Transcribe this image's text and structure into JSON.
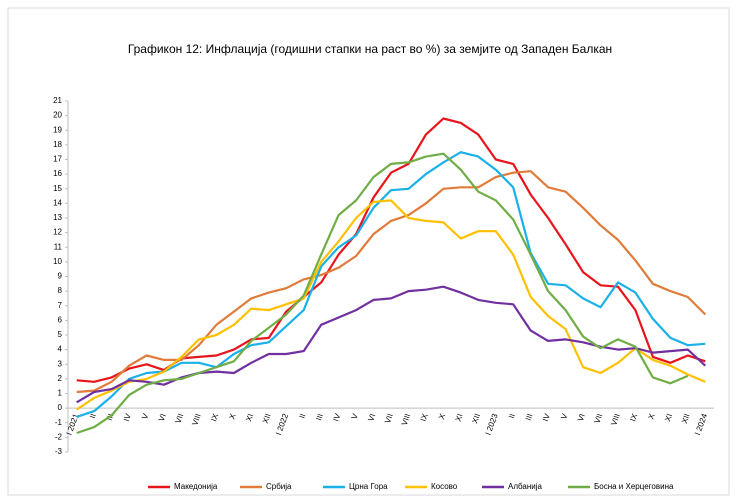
{
  "chart_data": {
    "type": "line",
    "title": "Графикон 12: Инфлација (годишни стапки на раст во %) за земјите од Западен Балкан",
    "categories": [
      "I 2021",
      "II",
      "III",
      "IV",
      "V",
      "VI",
      "VII",
      "VIII",
      "IX",
      "X",
      "XI",
      "XII",
      "I 2022",
      "II",
      "III",
      "IV",
      "V",
      "VI",
      "VII",
      "VIII",
      "IX",
      "X",
      "XI",
      "XII",
      "I 2023",
      "II",
      "III",
      "IV",
      "V",
      "VI",
      "VII",
      "VIII",
      "IX",
      "X",
      "XI",
      "XII",
      "I 2024"
    ],
    "ylim": [
      -3,
      21
    ],
    "yticks": [
      -3,
      -2,
      -1,
      0,
      1,
      2,
      3,
      4,
      5,
      6,
      7,
      8,
      9,
      10,
      11,
      12,
      13,
      14,
      15,
      16,
      17,
      18,
      19,
      20,
      21
    ],
    "grid": false,
    "legend": "bottom",
    "series": [
      {
        "name": "Македонија",
        "color": "#e8141c",
        "values": [
          1.9,
          1.8,
          2.1,
          2.7,
          3.0,
          2.6,
          3.4,
          3.5,
          3.6,
          4.0,
          4.7,
          4.8,
          6.6,
          7.6,
          8.6,
          10.5,
          11.9,
          14.4,
          16.1,
          16.7,
          18.7,
          19.8,
          19.5,
          18.7,
          17.0,
          16.7,
          14.6,
          13.0,
          11.2,
          9.3,
          8.4,
          8.3,
          6.7,
          3.5,
          3.1,
          3.6,
          3.2
        ]
      },
      {
        "name": "Србија",
        "color": "#e07b39",
        "values": [
          1.1,
          1.2,
          1.8,
          2.9,
          3.6,
          3.3,
          3.3,
          4.3,
          5.7,
          6.6,
          7.5,
          7.9,
          8.2,
          8.8,
          9.1,
          9.6,
          10.4,
          11.9,
          12.8,
          13.2,
          14.0,
          15.0,
          15.1,
          15.1,
          15.8,
          16.1,
          16.2,
          15.1,
          14.8,
          13.7,
          12.5,
          11.5,
          10.1,
          8.5,
          8.0,
          7.6,
          6.4
        ]
      },
      {
        "name": "Црна Гора",
        "color": "#1ab0e8",
        "values": [
          -0.6,
          -0.2,
          0.8,
          2.0,
          2.4,
          2.5,
          3.1,
          3.1,
          2.8,
          3.7,
          4.3,
          4.5,
          5.6,
          6.7,
          9.7,
          11.0,
          11.8,
          13.7,
          14.9,
          15.0,
          16.0,
          16.8,
          17.5,
          17.2,
          16.3,
          15.1,
          10.6,
          8.5,
          8.4,
          7.5,
          6.9,
          8.6,
          7.9,
          6.1,
          4.8,
          4.3,
          4.4
        ]
      },
      {
        "name": "Косово",
        "color": "#ffc000",
        "values": [
          -0.1,
          0.7,
          1.2,
          1.8,
          2.0,
          2.5,
          3.5,
          4.7,
          5.0,
          5.7,
          6.8,
          6.7,
          7.1,
          7.5,
          10.0,
          11.4,
          13.0,
          14.1,
          14.2,
          13.0,
          12.8,
          12.7,
          11.6,
          12.1,
          12.1,
          10.5,
          7.6,
          6.3,
          5.4,
          2.8,
          2.4,
          3.1,
          4.1,
          3.3,
          2.9,
          2.3,
          1.8
        ]
      },
      {
        "name": "Албанија",
        "color": "#7030a0",
        "values": [
          0.4,
          1.1,
          1.3,
          1.9,
          1.8,
          1.6,
          2.1,
          2.4,
          2.5,
          2.4,
          3.1,
          3.7,
          3.7,
          3.9,
          5.7,
          6.2,
          6.7,
          7.4,
          7.5,
          8.0,
          8.1,
          8.3,
          7.9,
          7.4,
          7.2,
          7.1,
          5.3,
          4.6,
          4.7,
          4.5,
          4.2,
          4.0,
          4.1,
          3.8,
          3.9,
          4.0,
          2.9
        ]
      },
      {
        "name": "Босна и Херцеговина",
        "color": "#70ad47",
        "values": [
          -1.7,
          -1.3,
          -0.5,
          0.9,
          1.6,
          1.9,
          2.0,
          2.4,
          2.8,
          3.2,
          4.6,
          5.5,
          6.4,
          7.7,
          10.5,
          13.2,
          14.2,
          15.8,
          16.7,
          16.8,
          17.2,
          17.4,
          16.3,
          14.8,
          14.2,
          12.9,
          10.5,
          8.0,
          6.7,
          4.9,
          4.1,
          4.7,
          4.2,
          2.1,
          1.7,
          2.2,
          null
        ]
      }
    ]
  }
}
